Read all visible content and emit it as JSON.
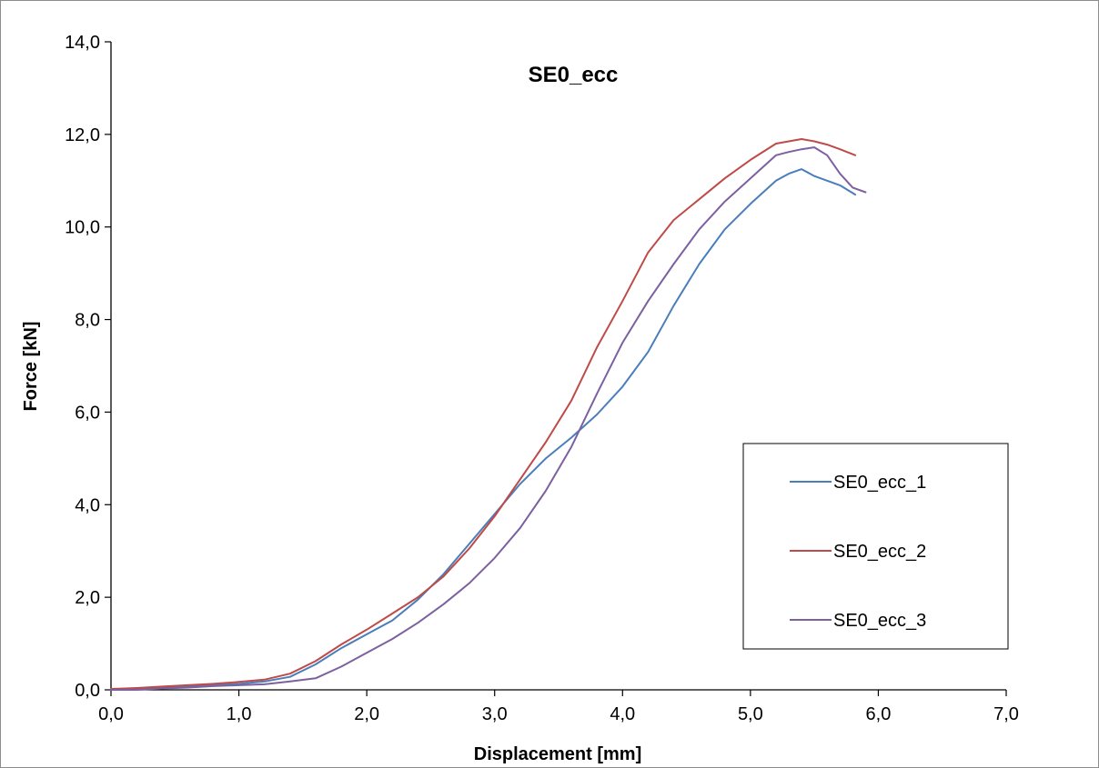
{
  "chart_data": {
    "type": "line",
    "title": "SE0_ecc",
    "xlabel": "Displacement [mm]",
    "ylabel": "Force [kN]",
    "xlim": [
      0,
      7
    ],
    "ylim": [
      0,
      14
    ],
    "xticks": [
      0,
      1,
      2,
      3,
      4,
      5,
      6,
      7
    ],
    "yticks": [
      0,
      2,
      4,
      6,
      8,
      10,
      12,
      14
    ],
    "xtick_labels": [
      "0,0",
      "1,0",
      "2,0",
      "3,0",
      "4,0",
      "5,0",
      "6,0",
      "7,0"
    ],
    "ytick_labels": [
      "0,0",
      "2,0",
      "4,0",
      "6,0",
      "8,0",
      "10,0",
      "12,0",
      "14,0"
    ],
    "grid": false,
    "legend_position": "right",
    "series": [
      {
        "name": "SE0_ecc_1",
        "color": "#4a7ebb",
        "x": [
          0,
          0.2,
          0.4,
          0.6,
          0.8,
          1.0,
          1.2,
          1.4,
          1.6,
          1.8,
          2.0,
          2.2,
          2.4,
          2.6,
          2.8,
          3.0,
          3.2,
          3.4,
          3.6,
          3.8,
          4.0,
          4.2,
          4.4,
          4.6,
          4.8,
          5.0,
          5.2,
          5.3,
          5.4,
          5.5,
          5.6,
          5.7,
          5.82
        ],
        "y": [
          0.0,
          0.02,
          0.05,
          0.08,
          0.1,
          0.13,
          0.18,
          0.28,
          0.55,
          0.9,
          1.2,
          1.5,
          1.95,
          2.5,
          3.15,
          3.8,
          4.45,
          5.0,
          5.45,
          5.95,
          6.55,
          7.3,
          8.3,
          9.2,
          9.95,
          10.5,
          11.0,
          11.15,
          11.25,
          11.1,
          11.0,
          10.9,
          10.7
        ]
      },
      {
        "name": "SE0_ecc_2",
        "color": "#be4b48",
        "x": [
          0,
          0.2,
          0.4,
          0.6,
          0.8,
          1.0,
          1.2,
          1.4,
          1.6,
          1.8,
          2.0,
          2.2,
          2.4,
          2.6,
          2.8,
          3.0,
          3.2,
          3.4,
          3.6,
          3.8,
          4.0,
          4.2,
          4.4,
          4.6,
          4.8,
          5.0,
          5.2,
          5.3,
          5.4,
          5.5,
          5.6,
          5.7,
          5.82
        ],
        "y": [
          0.02,
          0.04,
          0.07,
          0.1,
          0.13,
          0.17,
          0.22,
          0.35,
          0.62,
          0.98,
          1.3,
          1.65,
          2.0,
          2.45,
          3.05,
          3.75,
          4.55,
          5.35,
          6.25,
          7.4,
          8.4,
          9.45,
          10.15,
          10.6,
          11.05,
          11.45,
          11.8,
          11.85,
          11.9,
          11.85,
          11.78,
          11.68,
          11.55
        ]
      },
      {
        "name": "SE0_ecc_3",
        "color": "#7d60a0",
        "x": [
          0,
          0.2,
          0.4,
          0.6,
          0.8,
          1.0,
          1.2,
          1.4,
          1.6,
          1.8,
          2.0,
          2.2,
          2.4,
          2.6,
          2.8,
          3.0,
          3.2,
          3.4,
          3.6,
          3.8,
          4.0,
          4.2,
          4.4,
          4.6,
          4.8,
          5.0,
          5.2,
          5.3,
          5.4,
          5.5,
          5.6,
          5.7,
          5.8,
          5.9
        ],
        "y": [
          0.0,
          0.0,
          0.03,
          0.05,
          0.08,
          0.1,
          0.12,
          0.18,
          0.25,
          0.5,
          0.8,
          1.1,
          1.45,
          1.85,
          2.3,
          2.85,
          3.5,
          4.3,
          5.25,
          6.4,
          7.5,
          8.4,
          9.2,
          9.95,
          10.55,
          11.05,
          11.55,
          11.62,
          11.68,
          11.72,
          11.55,
          11.15,
          10.85,
          10.75
        ]
      }
    ]
  }
}
